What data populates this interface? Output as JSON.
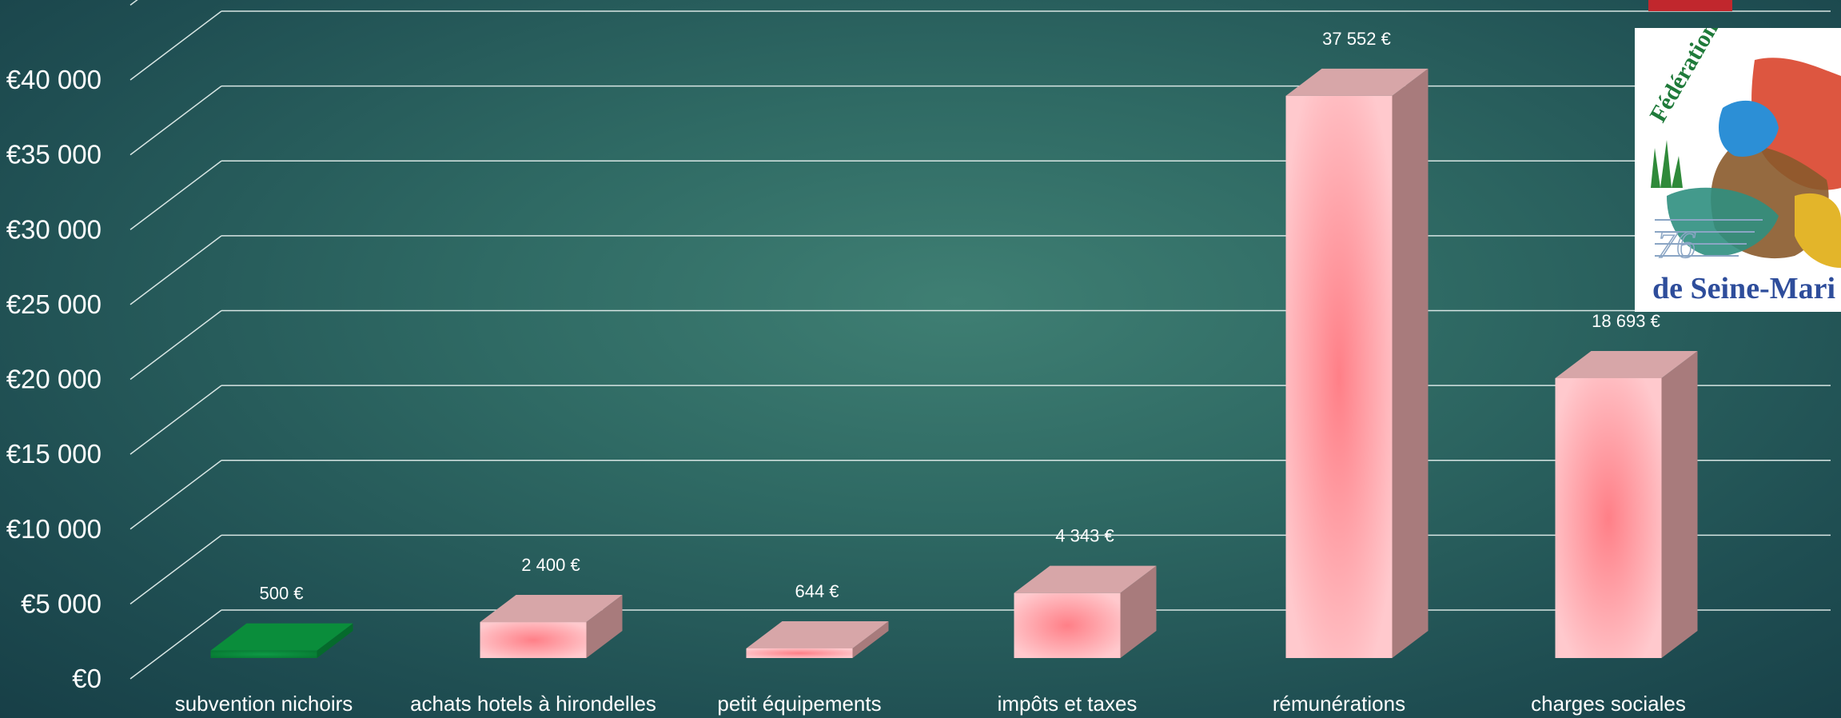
{
  "chart_data": {
    "type": "bar",
    "categories": [
      "subvention nichoirs",
      "achats hotels à hirondelles",
      "petit équipements",
      "impôts et taxes",
      "rémunérations",
      "charges sociales"
    ],
    "values": [
      500,
      2400,
      644,
      4343,
      37552,
      18693
    ],
    "value_labels": [
      "500 €",
      "2 400 €",
      "644 €",
      "4 343 €",
      "37 552 €",
      "18 693 €"
    ],
    "bar_colors": [
      "#0b8a3c",
      "#ffb3b8",
      "#ffb3b8",
      "#ffb3b8",
      "#ffb3b8",
      "#ffb3b8"
    ],
    "y_ticks": [
      0,
      5000,
      10000,
      15000,
      20000,
      25000,
      30000,
      35000,
      40000
    ],
    "y_tick_labels": [
      "€0",
      "€5 000",
      "€10 000",
      "€15 000",
      "€20 000",
      "€25 000",
      "€30 000",
      "€35 000",
      "€40 000"
    ],
    "ylim": [
      0,
      45000
    ],
    "grid": true,
    "style": "3d-column"
  },
  "logo": {
    "text_top": "Fédération des C",
    "text_number": "76",
    "text_bottom": "de Seine-Mari",
    "colors": {
      "green": "#1f7a3a",
      "blue": "#2e4d9b",
      "red": "#c1272d"
    }
  }
}
